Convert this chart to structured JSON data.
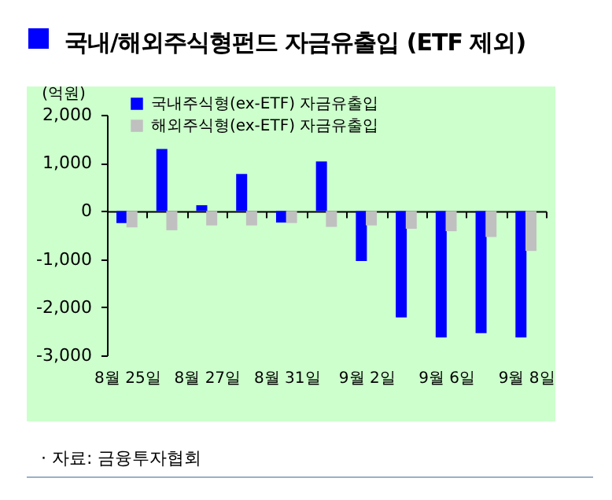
{
  "chart_data": {
    "type": "bar",
    "title": "국내/해외주식형펀드 자금유출입 (ETF 제외)",
    "ylabel": "(억원)",
    "categories": [
      "8월 25일",
      null,
      "8월 27일",
      null,
      "8월 31일",
      null,
      "9월 2일",
      null,
      "9월 6일",
      null,
      "9월 8일"
    ],
    "series": [
      {
        "name": "국내주식형(ex-ETF) 자금유출입",
        "color": "#0000ff",
        "values": [
          -250,
          1290,
          120,
          770,
          -240,
          1030,
          -1040,
          -2210,
          -2630,
          -2540,
          -2630
        ]
      },
      {
        "name": "해외주식형(ex-ETF) 자금유출입",
        "color": "#c0c0c0",
        "values": [
          -340,
          -400,
          -300,
          -300,
          -250,
          -330,
          -300,
          -370,
          -420,
          -540,
          -830
        ]
      }
    ],
    "ylim": [
      -3000,
      2000
    ],
    "yticks": [
      {
        "value": -3000,
        "label": "-3,000"
      },
      {
        "value": -2000,
        "label": "-2,000"
      },
      {
        "value": -1000,
        "label": "-1,000"
      },
      0,
      {
        "value": 1000,
        "label": "1,000"
      },
      {
        "value": 2000,
        "label": "2,000"
      }
    ],
    "legend": "top left",
    "annotations": [
      "· 자료: 금융투자협회"
    ]
  }
}
